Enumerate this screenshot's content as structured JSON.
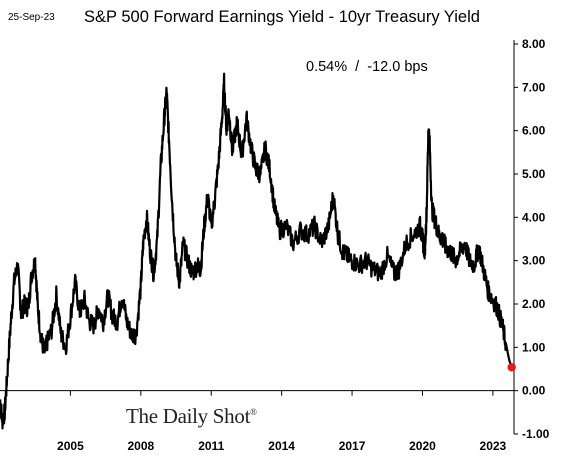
{
  "header": {
    "date": "25-Sep-23",
    "title": "S&P 500 Forward Earnings Yield - 10yr Treasury Yield"
  },
  "annotation": "0.54%  /  -12.0 bps",
  "brand": {
    "name": "The Daily Shot",
    "mark": "®"
  },
  "colors": {
    "line": "#000000",
    "end_marker": "#e31a1c",
    "axis": "#000000"
  },
  "chart_data": {
    "type": "line",
    "title": "S&P 500 Forward Earnings Yield - 10yr Treasury Yield",
    "xlabel": "",
    "ylabel": "",
    "ylim": [
      -1,
      8
    ],
    "xlim": [
      2002.0,
      2023.9
    ],
    "yticks": [
      -1,
      0,
      1,
      2,
      3,
      4,
      5,
      6,
      7,
      8
    ],
    "ytick_labels": [
      "-1.00",
      "0.00",
      "1.00",
      "2.00",
      "3.00",
      "4.00",
      "5.00",
      "6.00",
      "7.00",
      "8.00"
    ],
    "xticks": [
      2005,
      2008,
      2011,
      2014,
      2017,
      2020,
      2023
    ],
    "xtick_labels": [
      "2005",
      "2008",
      "2011",
      "2014",
      "2017",
      "2020",
      "2023"
    ],
    "zero_line": true,
    "grid": false,
    "series": [
      {
        "x": [
          2002.0,
          2002.1,
          2002.2,
          2002.3,
          2002.45,
          2002.6,
          2002.75,
          2002.9,
          2003.05,
          2003.2,
          2003.35,
          2003.5,
          2003.6,
          2003.75,
          2003.9,
          2004.0,
          2004.2,
          2004.4,
          2004.6,
          2004.8,
          2005.0,
          2005.2,
          2005.4,
          2005.6,
          2005.8,
          2006.0,
          2006.2,
          2006.4,
          2006.6,
          2006.8,
          2007.0,
          2007.2,
          2007.4,
          2007.6,
          2007.8,
          2008.0,
          2008.1,
          2008.25,
          2008.4,
          2008.55,
          2008.7,
          2008.85,
          2009.0,
          2009.1,
          2009.2,
          2009.35,
          2009.5,
          2009.65,
          2009.8,
          2010.0,
          2010.2,
          2010.4,
          2010.55,
          2010.7,
          2010.85,
          2011.0,
          2011.15,
          2011.3,
          2011.45,
          2011.55,
          2011.65,
          2011.75,
          2011.9,
          2012.1,
          2012.3,
          2012.5,
          2012.7,
          2012.9,
          2013.1,
          2013.3,
          2013.5,
          2013.7,
          2013.9,
          2014.2,
          2014.5,
          2014.8,
          2015.1,
          2015.4,
          2015.7,
          2016.0,
          2016.2,
          2016.4,
          2016.6,
          2016.8,
          2017.0,
          2017.3,
          2017.6,
          2017.9,
          2018.2,
          2018.5,
          2018.8,
          2019.0,
          2019.3,
          2019.6,
          2019.9,
          2020.0,
          2020.1,
          2020.18,
          2020.25,
          2020.3,
          2020.4,
          2020.55,
          2020.7,
          2020.85,
          2021.0,
          2021.2,
          2021.4,
          2021.6,
          2021.8,
          2022.0,
          2022.2,
          2022.4,
          2022.6,
          2022.8,
          2023.0,
          2023.2,
          2023.4,
          2023.55,
          2023.7,
          2023.8
        ],
        "y": [
          -0.2,
          -0.7,
          -0.5,
          0.3,
          1.5,
          2.5,
          2.9,
          1.8,
          2.0,
          1.9,
          2.7,
          3.0,
          2.0,
          1.2,
          0.9,
          1.1,
          1.4,
          2.2,
          1.3,
          1.0,
          1.7,
          2.5,
          1.8,
          2.1,
          1.6,
          1.5,
          1.9,
          1.6,
          2.2,
          1.7,
          1.6,
          2.2,
          1.6,
          1.3,
          1.3,
          2.4,
          3.4,
          4.0,
          3.2,
          2.7,
          3.5,
          5.2,
          6.3,
          6.9,
          5.8,
          4.2,
          3.0,
          2.5,
          3.4,
          3.0,
          2.7,
          2.9,
          2.8,
          3.8,
          4.5,
          3.8,
          4.4,
          5.2,
          6.2,
          7.1,
          6.0,
          6.5,
          5.5,
          6.2,
          5.4,
          6.3,
          5.6,
          5.1,
          5.0,
          5.6,
          5.1,
          4.2,
          3.7,
          3.8,
          3.4,
          3.7,
          3.6,
          3.8,
          3.4,
          3.8,
          4.5,
          3.6,
          3.2,
          3.1,
          3.0,
          2.9,
          3.0,
          2.8,
          2.7,
          3.1,
          2.7,
          2.8,
          3.4,
          3.6,
          3.8,
          3.5,
          3.2,
          4.2,
          6.0,
          5.8,
          4.2,
          3.9,
          3.6,
          3.5,
          3.3,
          3.2,
          3.0,
          3.2,
          3.4,
          3.0,
          2.9,
          3.3,
          2.8,
          2.3,
          2.1,
          1.9,
          1.5,
          1.1,
          0.7,
          0.54
        ]
      }
    ]
  }
}
